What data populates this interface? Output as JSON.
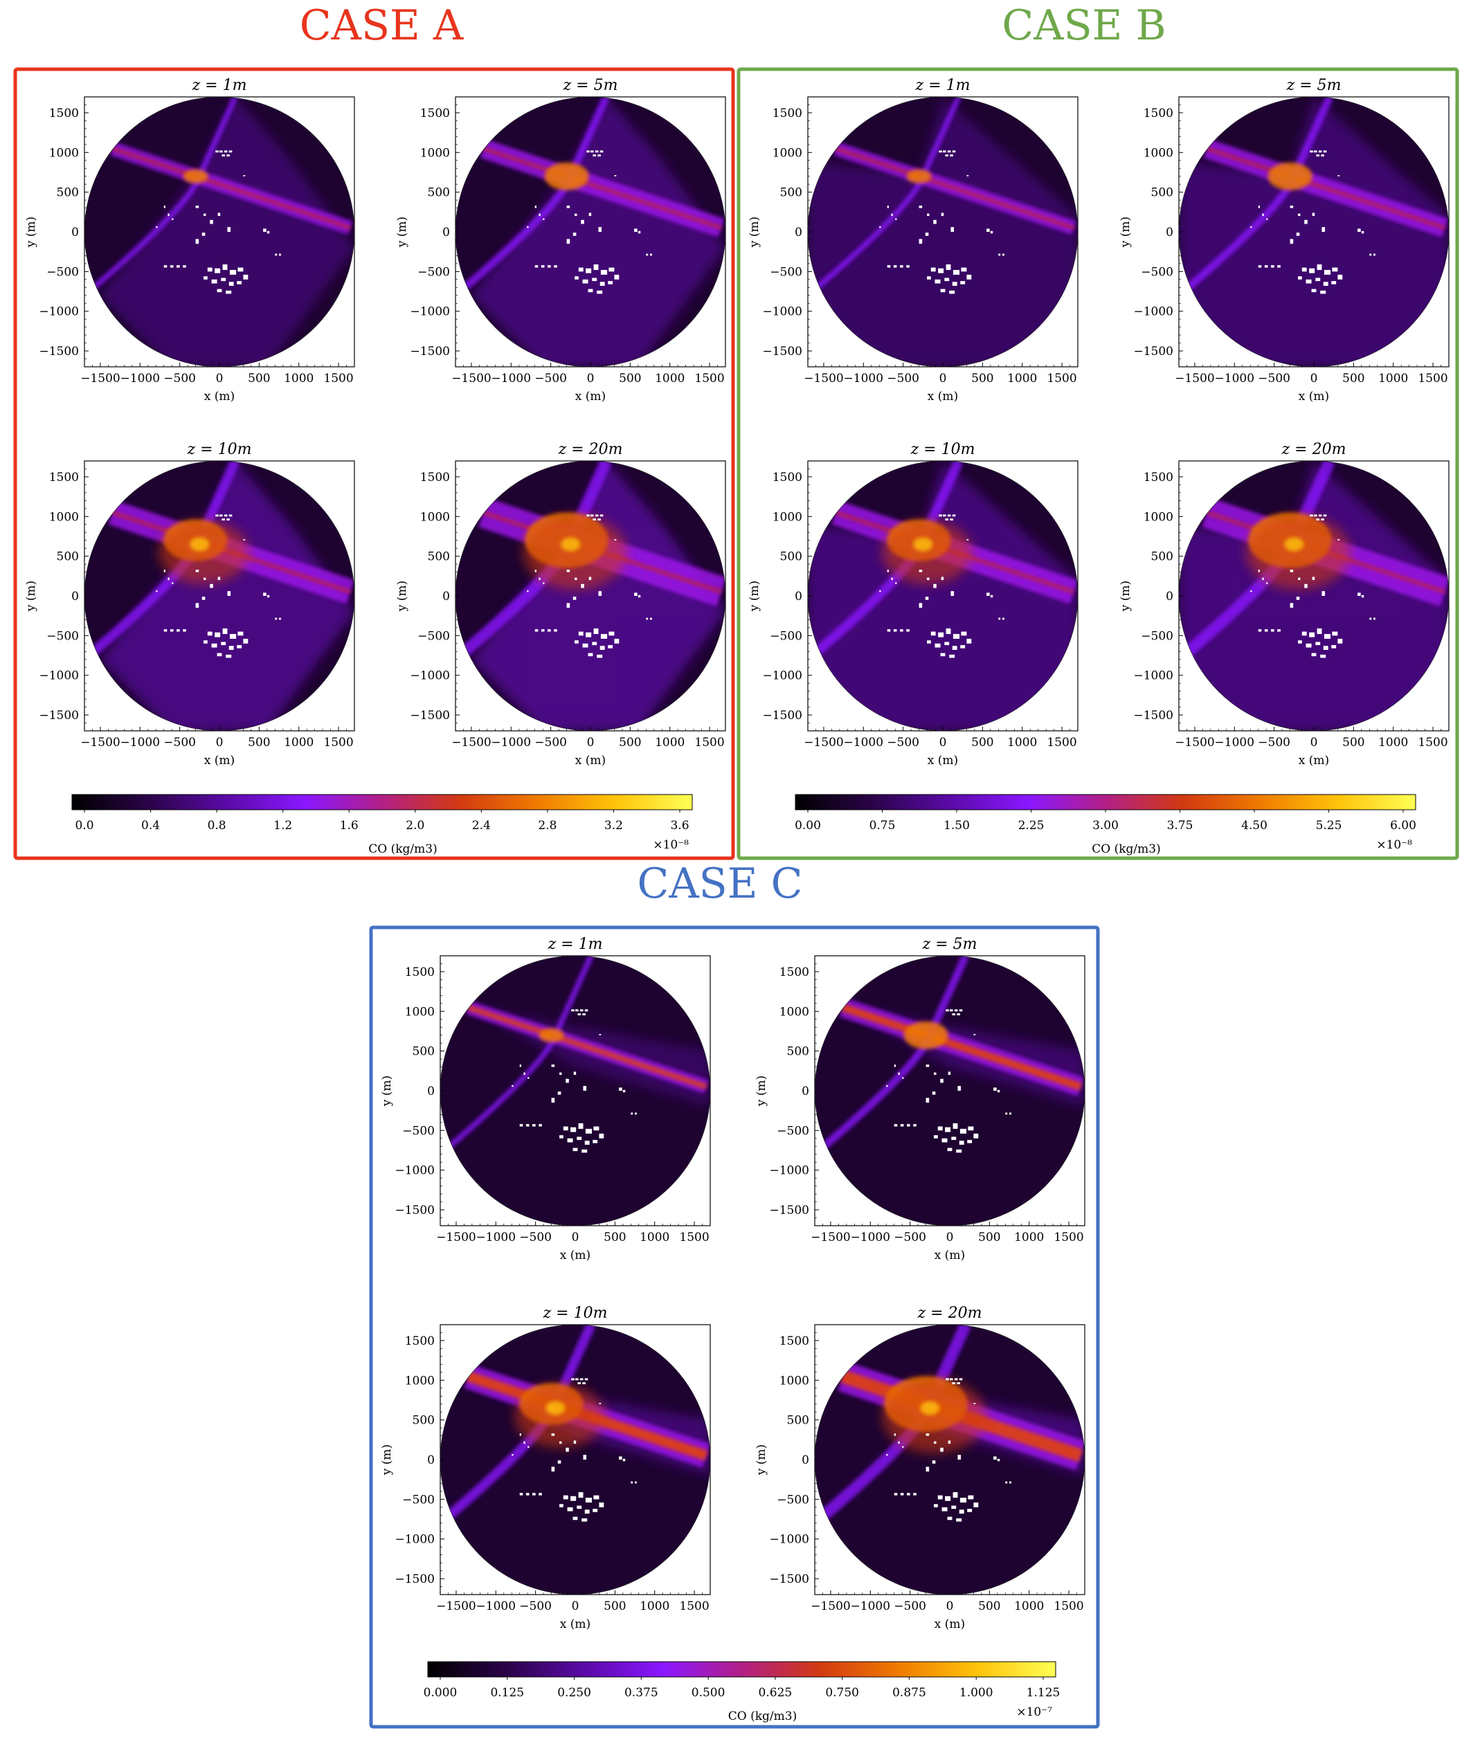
{
  "figure": {
    "panel_titles": [
      "z = 1m",
      "z = 5m",
      "z = 10m",
      "z = 20m"
    ],
    "x_axis_label": "x (m)",
    "y_axis_label": "y (m)",
    "x_ticks": [
      -1500,
      -1000,
      -500,
      0,
      500,
      1000,
      1500
    ],
    "y_ticks": [
      1500,
      1000,
      500,
      0,
      -500,
      -1000,
      -1500
    ],
    "xlim": [
      -1700,
      1700
    ],
    "ylim": [
      -1700,
      1700
    ],
    "colorbar_label": "CO (kg/m3)",
    "colors": {
      "case_a": "#e8341c",
      "case_b": "#6fa84a",
      "case_c": "#4472c4",
      "colormap": [
        "#000000",
        "#2b0349",
        "#5b0aa8",
        "#8a17ff",
        "#b21f86",
        "#d23a11",
        "#f07b00",
        "#ffc30a",
        "#ffff55"
      ],
      "background": "#1e0331",
      "buildings": "#ffffff"
    }
  },
  "chart_data": [
    {
      "type": "heatmap",
      "case": "CASE A",
      "panels": [
        "z = 1m",
        "z = 5m",
        "z = 10m",
        "z = 20m"
      ],
      "colorbar": {
        "label": "CO (kg/m3)",
        "ticks": [
          "0.0",
          "0.4",
          "0.8",
          "1.2",
          "1.6",
          "2.0",
          "2.4",
          "2.8",
          "3.2",
          "3.6"
        ],
        "range": [
          0,
          3.6
        ],
        "exponent": "×10⁻⁸"
      }
    },
    {
      "type": "heatmap",
      "case": "CASE B",
      "panels": [
        "z = 1m",
        "z = 5m",
        "z = 10m",
        "z = 20m"
      ],
      "colorbar": {
        "label": "CO (kg/m3)",
        "ticks": [
          "0.00",
          "0.75",
          "1.50",
          "2.25",
          "3.00",
          "3.75",
          "4.50",
          "5.25",
          "6.00"
        ],
        "range": [
          0,
          6.0
        ],
        "exponent": "×10⁻⁸"
      }
    },
    {
      "type": "heatmap",
      "case": "CASE C",
      "panels": [
        "z = 1m",
        "z = 5m",
        "z = 10m",
        "z = 20m"
      ],
      "colorbar": {
        "label": "CO (kg/m3)",
        "ticks": [
          "0.000",
          "0.125",
          "0.250",
          "0.375",
          "0.500",
          "0.625",
          "0.750",
          "0.875",
          "1.000",
          "1.125"
        ],
        "range": [
          0,
          1.125
        ],
        "exponent": "×10⁻⁷"
      }
    }
  ]
}
